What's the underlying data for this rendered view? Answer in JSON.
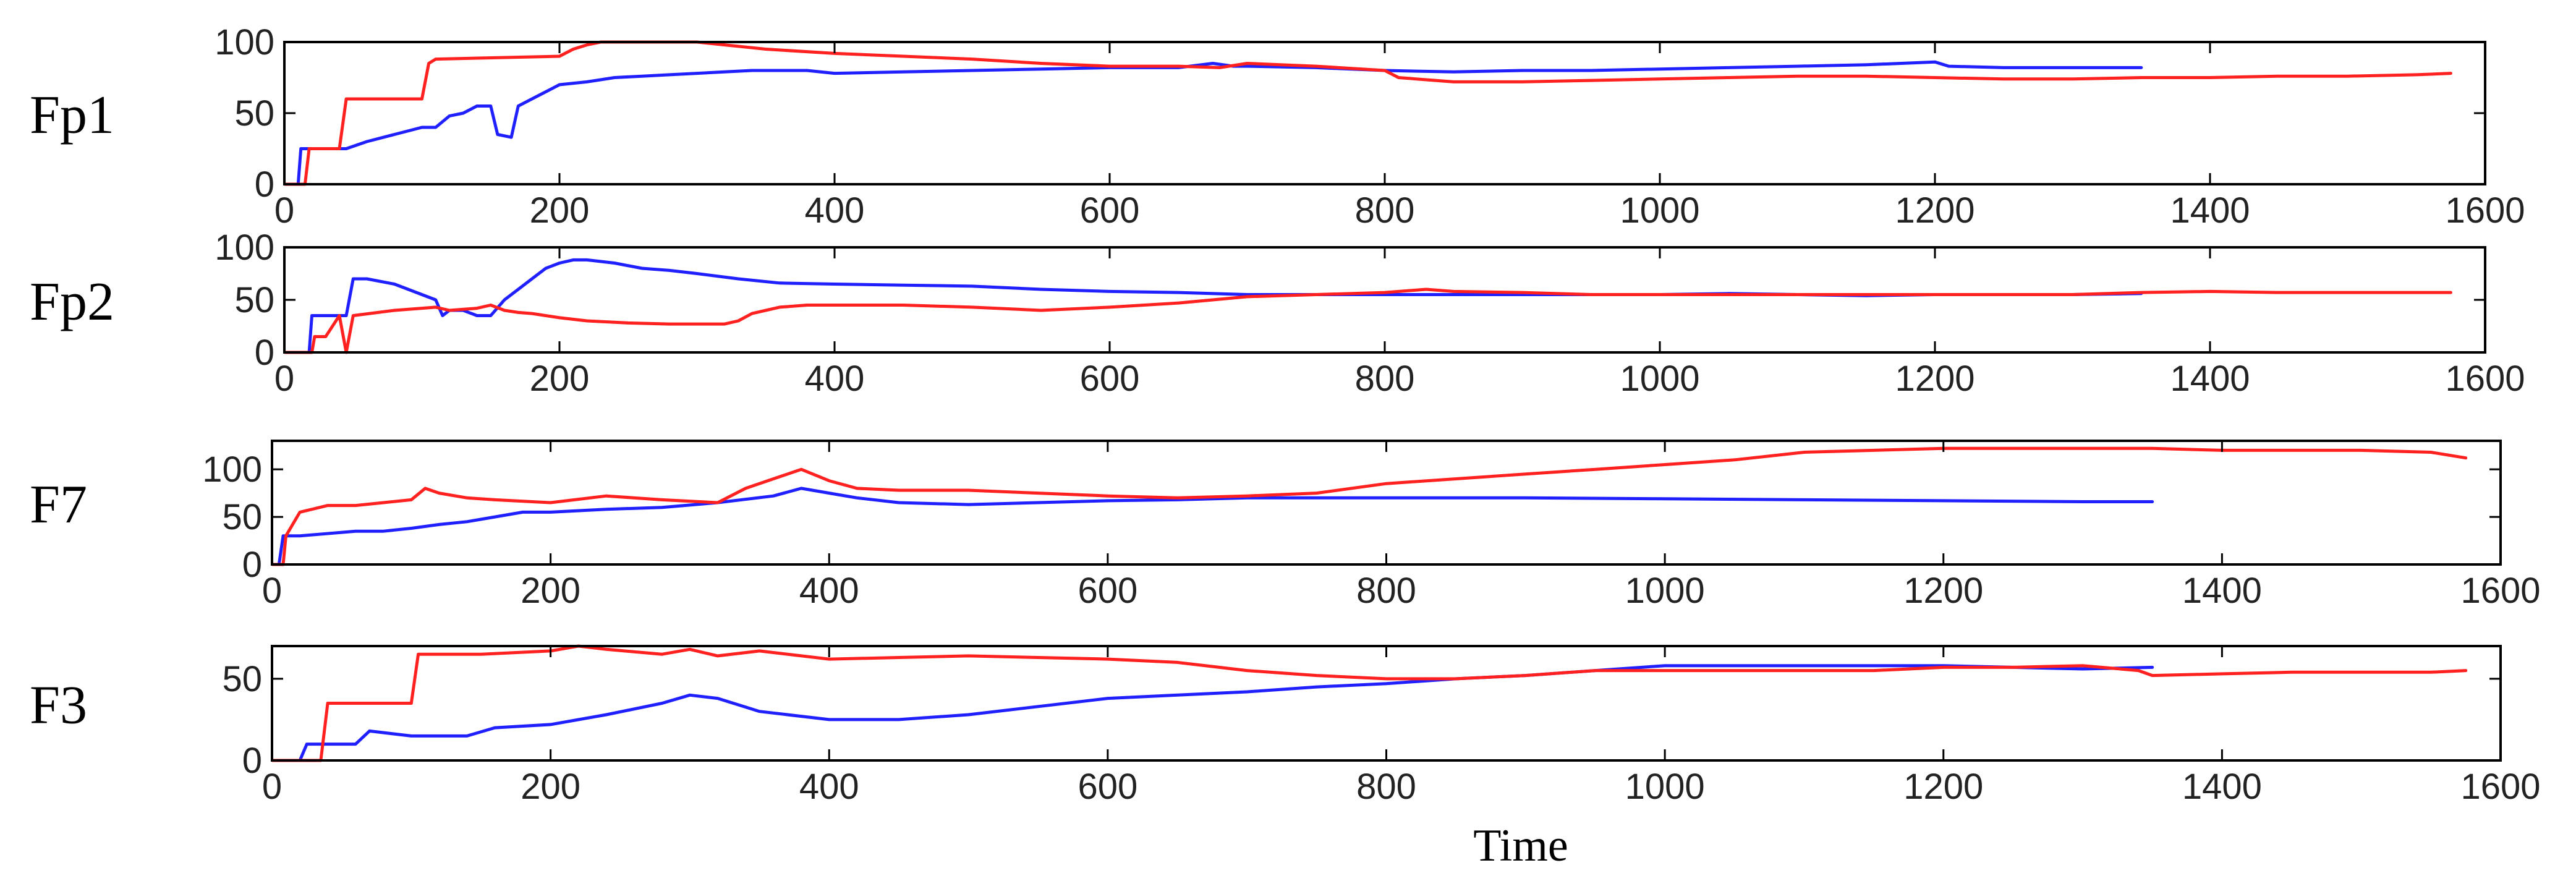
{
  "colors": {
    "series_a": "#2020ff",
    "series_b": "#ff2020"
  },
  "x_title": "Time",
  "chart_data": [
    {
      "type": "line",
      "ylabel": "Fp1",
      "xlim": [
        0,
        1600
      ],
      "ylim": [
        0,
        100
      ],
      "xticks": [
        0,
        200,
        400,
        600,
        800,
        1000,
        1200,
        1400,
        1600
      ],
      "yticks": [
        0,
        50,
        100
      ],
      "series": [
        {
          "color": "#2020ff",
          "x": [
            0,
            10,
            12,
            20,
            22,
            40,
            45,
            60,
            80,
            100,
            110,
            120,
            130,
            140,
            150,
            155,
            165,
            170,
            180,
            190,
            200,
            220,
            240,
            260,
            280,
            300,
            320,
            340,
            360,
            380,
            400,
            450,
            500,
            550,
            600,
            650,
            675,
            690,
            700,
            750,
            800,
            850,
            900,
            950,
            1000,
            1050,
            1100,
            1150,
            1200,
            1210,
            1250,
            1300,
            1350
          ],
          "y": [
            0,
            0,
            25,
            25,
            25,
            25,
            25,
            30,
            35,
            40,
            40,
            48,
            50,
            55,
            55,
            35,
            33,
            55,
            60,
            65,
            70,
            72,
            75,
            76,
            77,
            78,
            79,
            80,
            80,
            80,
            78,
            79,
            80,
            81,
            82,
            82,
            85,
            83,
            83,
            82,
            80,
            79,
            80,
            80,
            81,
            82,
            83,
            84,
            86,
            83,
            82,
            82,
            82
          ]
        },
        {
          "color": "#ff2020",
          "x": [
            0,
            10,
            15,
            18,
            40,
            45,
            100,
            105,
            110,
            200,
            210,
            220,
            230,
            250,
            300,
            320,
            340,
            350,
            400,
            450,
            500,
            550,
            600,
            650,
            680,
            700,
            750,
            800,
            810,
            850,
            900,
            950,
            1000,
            1050,
            1100,
            1150,
            1200,
            1250,
            1300,
            1350,
            1400,
            1450,
            1500,
            1550,
            1575
          ],
          "y": [
            0,
            0,
            0,
            25,
            25,
            60,
            60,
            85,
            88,
            90,
            95,
            98,
            100,
            100,
            100,
            98,
            96,
            95,
            92,
            90,
            88,
            85,
            83,
            83,
            82,
            85,
            83,
            80,
            75,
            72,
            72,
            73,
            74,
            75,
            76,
            76,
            75,
            74,
            74,
            75,
            75,
            76,
            76,
            77,
            78
          ]
        }
      ]
    },
    {
      "type": "line",
      "ylabel": "Fp2",
      "xlim": [
        0,
        1600
      ],
      "ylim": [
        0,
        100
      ],
      "xticks": [
        0,
        200,
        400,
        600,
        800,
        1000,
        1200,
        1400,
        1600
      ],
      "yticks": [
        0,
        50,
        100
      ],
      "series": [
        {
          "color": "#2020ff",
          "x": [
            0,
            18,
            20,
            40,
            45,
            50,
            60,
            80,
            90,
            100,
            110,
            115,
            120,
            130,
            140,
            150,
            160,
            170,
            180,
            190,
            200,
            210,
            220,
            240,
            260,
            280,
            300,
            330,
            360,
            400,
            450,
            500,
            550,
            600,
            650,
            700,
            750,
            800,
            850,
            900,
            950,
            1000,
            1050,
            1100,
            1150,
            1200,
            1250,
            1300,
            1350
          ],
          "y": [
            0,
            0,
            35,
            35,
            35,
            70,
            70,
            65,
            60,
            55,
            50,
            35,
            40,
            40,
            35,
            35,
            50,
            60,
            70,
            80,
            85,
            88,
            88,
            85,
            80,
            78,
            75,
            70,
            66,
            65,
            64,
            63,
            60,
            58,
            57,
            55,
            55,
            55,
            55,
            55,
            55,
            55,
            56,
            55,
            54,
            55,
            55,
            55,
            56
          ]
        },
        {
          "color": "#ff2020",
          "x": [
            0,
            20,
            22,
            30,
            40,
            45,
            50,
            80,
            100,
            110,
            120,
            140,
            150,
            160,
            170,
            180,
            200,
            220,
            250,
            280,
            300,
            320,
            330,
            340,
            360,
            380,
            400,
            450,
            500,
            550,
            600,
            650,
            700,
            750,
            800,
            830,
            850,
            900,
            950,
            1000,
            1050,
            1100,
            1150,
            1200,
            1250,
            1300,
            1350,
            1400,
            1450,
            1500,
            1550,
            1575
          ],
          "y": [
            0,
            0,
            15,
            15,
            35,
            0,
            35,
            40,
            42,
            43,
            40,
            42,
            45,
            40,
            38,
            37,
            33,
            30,
            28,
            27,
            27,
            27,
            30,
            37,
            43,
            45,
            45,
            45,
            43,
            40,
            43,
            47,
            53,
            55,
            57,
            60,
            58,
            57,
            55,
            55,
            55,
            55,
            55,
            55,
            55,
            55,
            57,
            58,
            57,
            57,
            57,
            57
          ]
        }
      ]
    },
    {
      "type": "line",
      "ylabel": "F7",
      "xlim": [
        0,
        1600
      ],
      "ylim": [
        0,
        130
      ],
      "xticks": [
        0,
        200,
        400,
        600,
        800,
        1000,
        1200,
        1400,
        1600
      ],
      "yticks": [
        0,
        50,
        100
      ],
      "series": [
        {
          "color": "#2020ff",
          "x": [
            0,
            5,
            8,
            15,
            20,
            60,
            80,
            100,
            120,
            140,
            160,
            180,
            200,
            240,
            280,
            320,
            360,
            380,
            400,
            420,
            450,
            500,
            550,
            600,
            650,
            700,
            800,
            900,
            1000,
            1100,
            1200,
            1300,
            1350
          ],
          "y": [
            0,
            0,
            30,
            30,
            30,
            35,
            35,
            38,
            42,
            45,
            50,
            55,
            55,
            58,
            60,
            65,
            72,
            80,
            75,
            70,
            65,
            63,
            65,
            67,
            68,
            70,
            70,
            70,
            69,
            68,
            67,
            66,
            66
          ]
        },
        {
          "color": "#ff2020",
          "x": [
            0,
            8,
            10,
            20,
            40,
            60,
            80,
            100,
            110,
            120,
            140,
            160,
            200,
            240,
            280,
            320,
            340,
            360,
            380,
            400,
            420,
            450,
            500,
            550,
            600,
            650,
            700,
            750,
            800,
            850,
            900,
            950,
            1000,
            1050,
            1100,
            1150,
            1200,
            1250,
            1300,
            1350,
            1400,
            1450,
            1500,
            1550,
            1575
          ],
          "y": [
            0,
            0,
            30,
            55,
            62,
            62,
            65,
            68,
            80,
            75,
            70,
            68,
            65,
            72,
            68,
            65,
            80,
            90,
            100,
            88,
            80,
            78,
            78,
            75,
            72,
            70,
            72,
            75,
            85,
            90,
            95,
            100,
            105,
            110,
            118,
            120,
            122,
            122,
            122,
            122,
            120,
            120,
            120,
            118,
            112
          ]
        }
      ]
    },
    {
      "type": "line",
      "ylabel": "F3",
      "xlim": [
        0,
        1600
      ],
      "ylim": [
        0,
        70
      ],
      "xticks": [
        0,
        200,
        400,
        600,
        800,
        1000,
        1200,
        1400,
        1600
      ],
      "yticks": [
        0,
        50
      ],
      "series": [
        {
          "color": "#2020ff",
          "x": [
            0,
            20,
            25,
            30,
            60,
            70,
            100,
            120,
            140,
            160,
            200,
            240,
            280,
            300,
            320,
            350,
            400,
            450,
            500,
            550,
            600,
            650,
            700,
            750,
            800,
            850,
            900,
            950,
            1000,
            1050,
            1100,
            1150,
            1200,
            1250,
            1300,
            1350
          ],
          "y": [
            0,
            0,
            10,
            10,
            10,
            18,
            15,
            15,
            15,
            20,
            22,
            28,
            35,
            40,
            38,
            30,
            25,
            25,
            28,
            33,
            38,
            40,
            42,
            45,
            47,
            50,
            52,
            55,
            58,
            58,
            58,
            58,
            58,
            57,
            56,
            57
          ]
        },
        {
          "color": "#ff2020",
          "x": [
            0,
            35,
            40,
            100,
            105,
            150,
            200,
            220,
            240,
            280,
            300,
            320,
            350,
            400,
            450,
            500,
            550,
            600,
            650,
            700,
            750,
            800,
            850,
            900,
            950,
            1000,
            1050,
            1100,
            1150,
            1200,
            1250,
            1300,
            1340,
            1350,
            1400,
            1450,
            1500,
            1550,
            1575
          ],
          "y": [
            0,
            0,
            35,
            35,
            65,
            65,
            67,
            70,
            68,
            65,
            68,
            64,
            67,
            62,
            63,
            64,
            63,
            62,
            60,
            55,
            52,
            50,
            50,
            52,
            55,
            55,
            55,
            55,
            55,
            57,
            57,
            58,
            55,
            52,
            53,
            54,
            54,
            54,
            55
          ]
        }
      ]
    }
  ]
}
